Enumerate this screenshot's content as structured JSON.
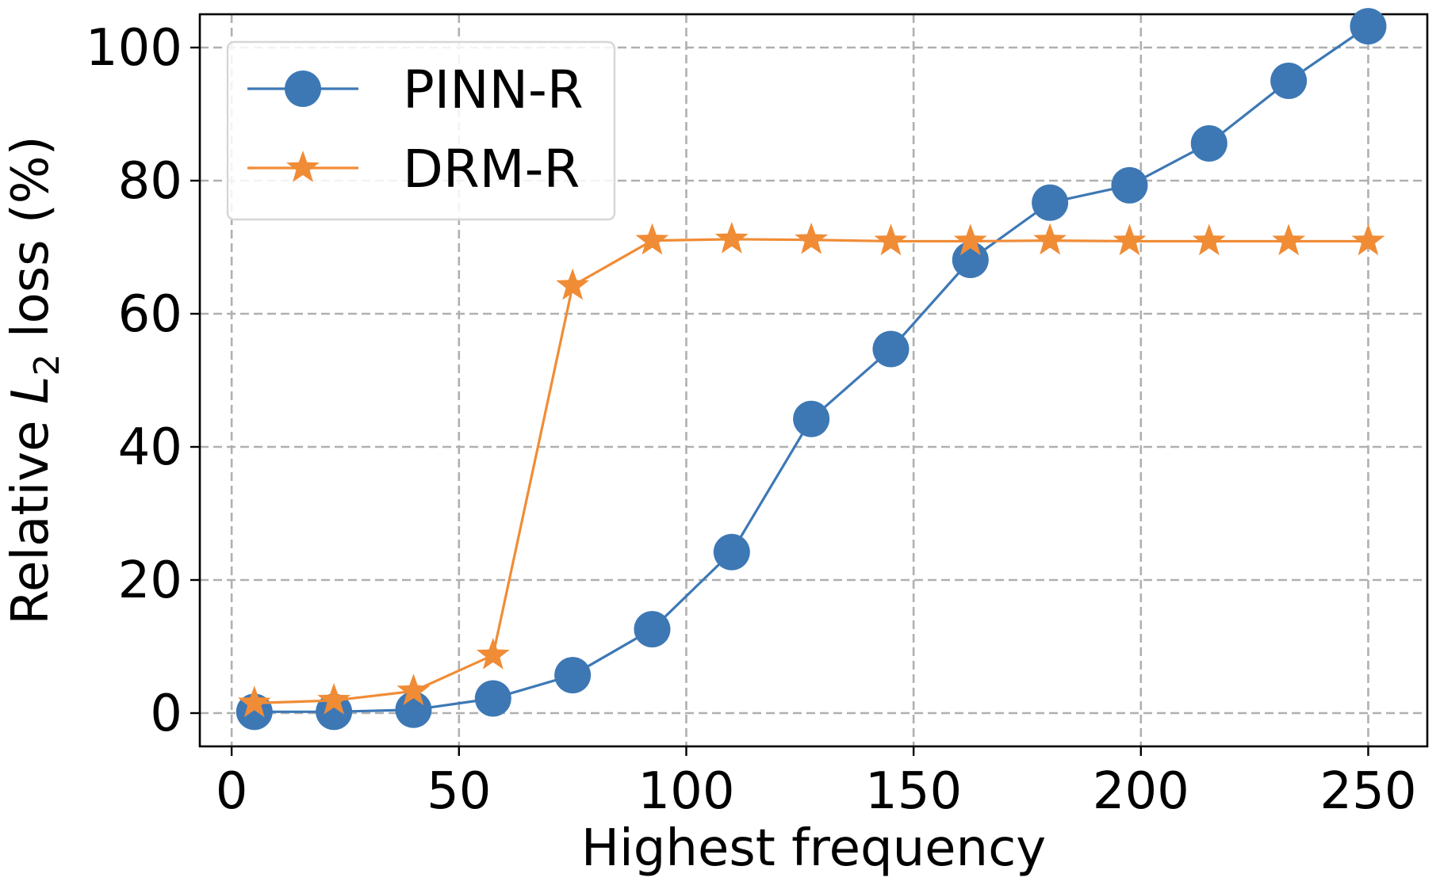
{
  "chart_data": {
    "type": "line",
    "title": "",
    "xlabel": "Highest frequency",
    "ylabel": {
      "prefix": "Relative ",
      "symbol": "L",
      "subscript": "2",
      "suffix": " loss (%)"
    },
    "xlim": [
      -7,
      263
    ],
    "ylim": [
      -5,
      105
    ],
    "xticks": [
      0,
      50,
      100,
      150,
      200,
      250
    ],
    "yticks": [
      0,
      20,
      40,
      60,
      80,
      100
    ],
    "grid": true,
    "legend_position": "top-left",
    "series": [
      {
        "name": "PINN-R",
        "color": "#3d78b5",
        "marker": "circle",
        "x": [
          5,
          22.5,
          40,
          57.5,
          75,
          92.5,
          110,
          127.5,
          145,
          162.5,
          180,
          197.5,
          215,
          232.5,
          250
        ],
        "y": [
          0.2,
          0.2,
          0.5,
          2.2,
          5.7,
          12.6,
          24.2,
          44.2,
          54.7,
          68.1,
          76.7,
          79.3,
          85.6,
          95.0,
          103.2
        ]
      },
      {
        "name": "DRM-R",
        "color": "#f08c36",
        "marker": "star",
        "x": [
          5,
          22.5,
          40,
          57.5,
          75,
          92.5,
          110,
          127.5,
          145,
          162.5,
          180,
          197.5,
          215,
          232.5,
          250
        ],
        "y": [
          1.5,
          1.9,
          3.3,
          8.7,
          64.2,
          71.0,
          71.2,
          71.1,
          70.9,
          70.9,
          71.0,
          70.9,
          70.9,
          70.9,
          70.9
        ]
      }
    ]
  }
}
